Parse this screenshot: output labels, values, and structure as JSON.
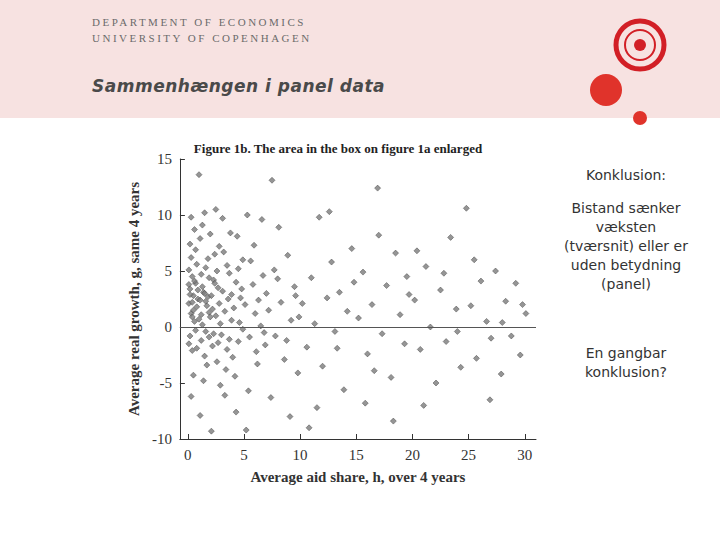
{
  "slide": {
    "department": "DEPARTMENT OF ECONOMICS",
    "university": "UNIVERSITY OF COPENHAGEN",
    "heading": "Sammenhængen i panel data",
    "notes": [
      "Konklusion:",
      "Bistand sænker væksten (tværsnit) eller er uden betydning (panel)",
      "En gangbar konklusion?"
    ]
  },
  "chart_data": {
    "type": "scatter",
    "title": "Figure 1b. The area in the box on figure 1a enlarged",
    "xlabel": "Average aid share, h, over 4 years",
    "ylabel": "Average real growth, g, same 4 years",
    "color": "#7a7a7a",
    "marker": "diamond",
    "grid": false,
    "xlim": [
      -0.7,
      31
    ],
    "xticks": [
      0,
      5,
      10,
      15,
      20,
      25,
      30
    ],
    "ylim": [
      -10,
      15
    ],
    "yticks": [
      -10,
      -5,
      0,
      5,
      10,
      15
    ],
    "hline": 0,
    "x": [
      0.1,
      0.2,
      0.3,
      0.2,
      0.4,
      0.5,
      0.3,
      0.6,
      0.1,
      0.7,
      0.4,
      0.8,
      0.2,
      0.9,
      0.5,
      0.3,
      0.6,
      0.1,
      0.8,
      0.4,
      0.7,
      0.2,
      0.9,
      0.5,
      0.3,
      0.6,
      0.1,
      0.8,
      0.4,
      0.7,
      1.0,
      1.1,
      1.2,
      1.3,
      1.4,
      1.5,
      1.6,
      1.2,
      1.8,
      1.9,
      1.1,
      1.3,
      1.7,
      1.5,
      1.4,
      1.6,
      1.9,
      1.2,
      1.8,
      1.0,
      1.7,
      1.3,
      1.5,
      1.9,
      1.1,
      1.6,
      2.1,
      2.3,
      2.5,
      2.2,
      2.7,
      2.9,
      2.4,
      2.6,
      2.8,
      2.0,
      2.3,
      2.6,
      2.9,
      2.2,
      2.5,
      2.7,
      2.4,
      2.8,
      2.1,
      2.0,
      3.1,
      3.3,
      3.5,
      3.7,
      3.9,
      3.2,
      3.4,
      3.6,
      3.8,
      3.0,
      3.5,
      3.3,
      3.9,
      3.1,
      3.7,
      4.1,
      4.3,
      4.5,
      4.7,
      4.9,
      4.2,
      4.6,
      4.8,
      4.4,
      4.0,
      4.5,
      4.9,
      4.3,
      5.1,
      5.3,
      5.5,
      5.8,
      6.0,
      6.2,
      5.6,
      6.5,
      6.7,
      6.9,
      5.9,
      6.3,
      6.6,
      5.4,
      6.8,
      5.2,
      7.0,
      6.1,
      7.2,
      7.5,
      7.8,
      8.0,
      8.3,
      8.6,
      8.9,
      9.2,
      9.5,
      9.8,
      7.4,
      8.1,
      8.8,
      9.6,
      7.7,
      9.1,
      9.9,
      10.2,
      10.6,
      11.0,
      11.3,
      11.7,
      12.0,
      12.4,
      12.8,
      13.1,
      13.5,
      13.9,
      14.2,
      14.6,
      11.5,
      12.6,
      13.3,
      14.8,
      10.8,
      15.2,
      15.6,
      16.0,
      16.4,
      16.9,
      17.3,
      17.7,
      18.1,
      18.5,
      18.9,
      19.3,
      19.7,
      15.8,
      17.0,
      18.3,
      19.5,
      16.6,
      20.2,
      20.7,
      21.2,
      21.6,
      22.1,
      22.5,
      23.0,
      23.4,
      23.9,
      24.3,
      24.8,
      21.0,
      22.8,
      24.0,
      20.4,
      25.2,
      25.7,
      26.1,
      26.6,
      27.0,
      27.4,
      27.9,
      28.3,
      28.8,
      29.2,
      29.6,
      30.1,
      25.5,
      28.0,
      29.8,
      26.9
    ],
    "values": [
      2.1,
      3.4,
      1.2,
      -0.8,
      4.5,
      2.8,
      6.2,
      0.5,
      5.1,
      3.9,
      -2.1,
      1.8,
      7.4,
      2.5,
      -4.3,
      9.8,
      4.1,
      -1.5,
      5.6,
      0.9,
      -0.3,
      2.9,
      3.3,
      1.5,
      -6.2,
      8.7,
      3.8,
      -1.9,
      2.2,
      6.9,
      13.6,
      2.4,
      4.7,
      0.2,
      3.1,
      -2.6,
      5.3,
      1.1,
      2.7,
      -0.9,
      7.9,
      3.6,
      1.9,
      10.2,
      -4.8,
      2.3,
      4.4,
      -1.2,
      6.1,
      0.7,
      -3.4,
      9.1,
      3.0,
      1.3,
      -7.9,
      -0.4,
      2.8,
      4.2,
      1.0,
      -1.7,
      3.5,
      0.3,
      6.5,
      -3.1,
      2.1,
      8.3,
      -0.6,
      5.0,
      -5.2,
      1.6,
      10.5,
      -1.4,
      3.9,
      7.2,
      -9.3,
      0.9,
      3.2,
      1.4,
      -2.0,
      4.8,
      0.6,
      6.7,
      -3.8,
      2.5,
      8.4,
      -0.7,
      5.5,
      -6.1,
      2.9,
      9.7,
      -1.1,
      1.7,
      4.0,
      -1.3,
      2.6,
      6.0,
      -4.4,
      0.4,
      3.4,
      8.1,
      -2.7,
      5.2,
      -0.2,
      -7.6,
      2.0,
      10.0,
      -0.9,
      3.8,
      1.2,
      -3.3,
      5.9,
      0.1,
      4.6,
      -1.6,
      7.3,
      2.4,
      9.6,
      -5.7,
      -0.5,
      -9.2,
      3.0,
      -2.2,
      1.5,
      13.1,
      -0.8,
      4.3,
      2.2,
      -2.9,
      6.4,
      0.6,
      3.6,
      -4.1,
      -6.3,
      8.9,
      -1.2,
      2.8,
      5.1,
      -8.0,
      0.9,
      2.1,
      -1.8,
      4.4,
      0.3,
      9.8,
      -3.5,
      2.6,
      5.8,
      -0.4,
      3.1,
      -5.6,
      1.4,
      7.0,
      -7.2,
      10.3,
      -1.9,
      4.0,
      -9.0,
      0.8,
      4.9,
      -2.4,
      2.0,
      12.4,
      -0.6,
      3.7,
      -4.5,
      6.6,
      1.1,
      -1.5,
      2.9,
      -6.8,
      8.2,
      -8.4,
      4.5,
      -3.9,
      2.4,
      -2.0,
      5.4,
      0.0,
      -5.0,
      3.3,
      -1.3,
      8.0,
      1.6,
      -3.6,
      10.6,
      -7.0,
      4.8,
      -0.4,
      6.8,
      1.9,
      -2.8,
      4.1,
      0.5,
      -1.0,
      5.0,
      -4.2,
      2.3,
      -0.8,
      3.9,
      -2.5,
      1.2,
      6.0,
      0.4,
      2.0,
      -6.5
    ]
  }
}
